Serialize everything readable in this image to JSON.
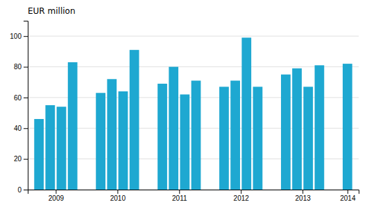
{
  "chart_data": {
    "type": "bar",
    "ylabel": "EUR million",
    "categories": [
      "2009",
      null,
      null,
      null,
      "2010",
      null,
      null,
      null,
      "2011",
      null,
      null,
      null,
      "2012",
      null,
      null,
      null,
      "2013",
      null,
      null,
      null,
      "2014"
    ],
    "values": [
      46,
      55,
      54,
      83,
      63,
      72,
      64,
      91,
      69,
      80,
      62,
      71,
      67,
      71,
      99,
      67,
      75,
      79,
      67,
      81,
      82
    ],
    "color": "#1ea8d1",
    "ylim": [
      0,
      110
    ],
    "yticks": [
      0,
      20,
      40,
      60,
      80,
      100
    ],
    "grid": true
  }
}
